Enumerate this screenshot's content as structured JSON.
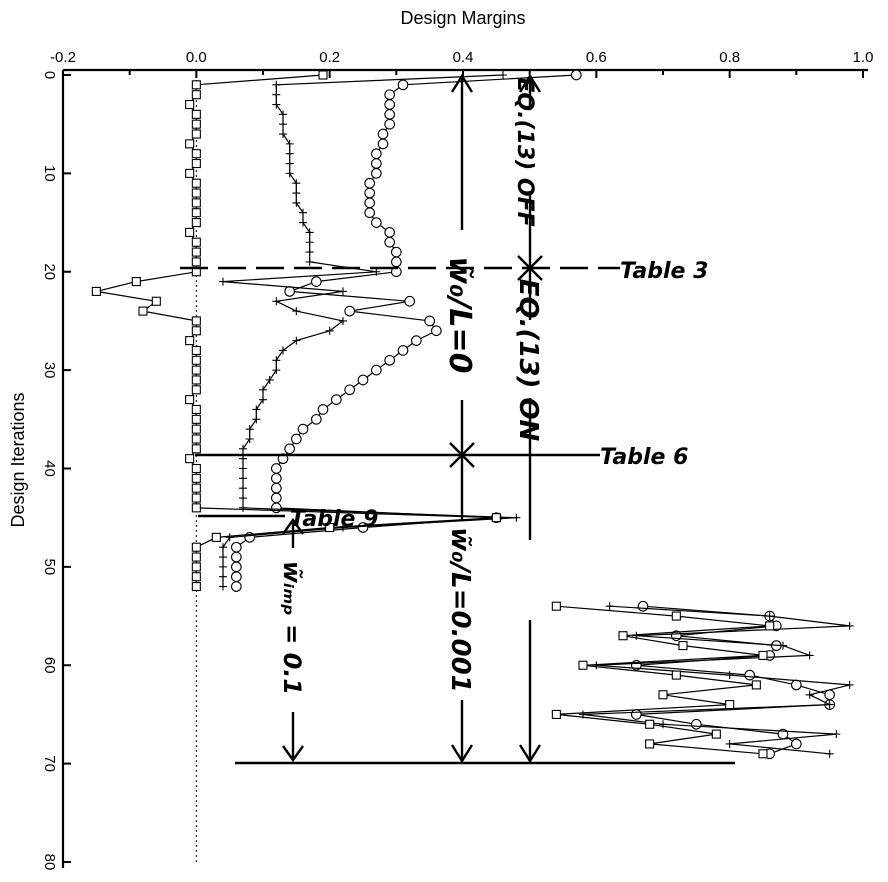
{
  "chart_data": {
    "type": "line",
    "title": "",
    "xlabel": "Design Margins",
    "ylabel": "Design Iterations",
    "xlim": [
      -0.2,
      1.0
    ],
    "ylim": [
      0,
      80
    ],
    "y_inverted": true,
    "x_axis_position": "top",
    "x_ticks": [
      "-0.2",
      "0.0",
      "0.2",
      "0.4",
      "0.6",
      "0.8",
      "1.0"
    ],
    "y_ticks": [
      "0",
      "10",
      "20",
      "30",
      "40",
      "50",
      "60",
      "70",
      "80"
    ],
    "reference_line": {
      "x": 0.0,
      "style": "dotted"
    },
    "series": [
      {
        "marker": "circle",
        "points": [
          [
            0.57,
            0
          ],
          [
            0.31,
            1
          ],
          [
            0.29,
            2
          ],
          [
            0.29,
            3
          ],
          [
            0.29,
            4
          ],
          [
            0.29,
            5
          ],
          [
            0.28,
            6
          ],
          [
            0.28,
            7
          ],
          [
            0.27,
            8
          ],
          [
            0.27,
            9
          ],
          [
            0.27,
            10
          ],
          [
            0.26,
            11
          ],
          [
            0.26,
            12
          ],
          [
            0.26,
            13
          ],
          [
            0.26,
            14
          ],
          [
            0.27,
            15
          ],
          [
            0.29,
            16
          ],
          [
            0.29,
            17
          ],
          [
            0.3,
            18
          ],
          [
            0.3,
            19
          ],
          [
            0.3,
            20
          ],
          [
            0.18,
            21
          ],
          [
            0.14,
            22
          ],
          [
            0.32,
            23
          ],
          [
            0.23,
            24
          ],
          [
            0.35,
            25
          ],
          [
            0.36,
            26
          ],
          [
            0.33,
            27
          ],
          [
            0.31,
            28
          ],
          [
            0.29,
            29
          ],
          [
            0.27,
            30
          ],
          [
            0.25,
            31
          ],
          [
            0.23,
            32
          ],
          [
            0.21,
            33
          ],
          [
            0.19,
            34
          ],
          [
            0.18,
            35
          ],
          [
            0.16,
            36
          ],
          [
            0.15,
            37
          ],
          [
            0.14,
            38
          ],
          [
            0.13,
            39
          ],
          [
            0.12,
            40
          ],
          [
            0.12,
            41
          ],
          [
            0.12,
            42
          ],
          [
            0.12,
            43
          ],
          [
            0.12,
            44
          ],
          [
            0.45,
            45
          ],
          [
            0.25,
            46
          ],
          [
            0.08,
            47
          ],
          [
            0.06,
            48
          ],
          [
            0.06,
            49
          ],
          [
            0.06,
            50
          ],
          [
            0.06,
            51
          ],
          [
            0.06,
            52
          ],
          [
            0.67,
            54
          ],
          [
            0.86,
            55
          ],
          [
            0.87,
            56
          ],
          [
            0.72,
            57
          ],
          [
            0.87,
            58
          ],
          [
            0.86,
            59
          ],
          [
            0.66,
            60
          ],
          [
            0.83,
            61
          ],
          [
            0.9,
            62
          ],
          [
            0.95,
            63
          ],
          [
            0.95,
            64
          ],
          [
            0.66,
            65
          ],
          [
            0.75,
            66
          ],
          [
            0.88,
            67
          ],
          [
            0.9,
            68
          ],
          [
            0.86,
            69
          ]
        ]
      },
      {
        "marker": "plus",
        "points": [
          [
            0.46,
            0
          ],
          [
            0.12,
            1
          ],
          [
            0.12,
            2
          ],
          [
            0.12,
            3
          ],
          [
            0.13,
            4
          ],
          [
            0.13,
            5
          ],
          [
            0.13,
            6
          ],
          [
            0.14,
            7
          ],
          [
            0.14,
            8
          ],
          [
            0.14,
            9
          ],
          [
            0.14,
            10
          ],
          [
            0.15,
            11
          ],
          [
            0.15,
            12
          ],
          [
            0.15,
            13
          ],
          [
            0.16,
            14
          ],
          [
            0.16,
            15
          ],
          [
            0.17,
            16
          ],
          [
            0.17,
            17
          ],
          [
            0.17,
            18
          ],
          [
            0.17,
            19
          ],
          [
            0.27,
            20
          ],
          [
            0.04,
            21
          ],
          [
            0.22,
            22
          ],
          [
            0.12,
            23
          ],
          [
            0.15,
            24
          ],
          [
            0.22,
            25
          ],
          [
            0.2,
            26
          ],
          [
            0.15,
            27
          ],
          [
            0.13,
            28
          ],
          [
            0.12,
            29
          ],
          [
            0.12,
            30
          ],
          [
            0.11,
            31
          ],
          [
            0.1,
            32
          ],
          [
            0.1,
            33
          ],
          [
            0.09,
            34
          ],
          [
            0.09,
            35
          ],
          [
            0.08,
            36
          ],
          [
            0.08,
            37
          ],
          [
            0.07,
            38
          ],
          [
            0.07,
            39
          ],
          [
            0.07,
            40
          ],
          [
            0.07,
            41
          ],
          [
            0.07,
            42
          ],
          [
            0.07,
            43
          ],
          [
            0.07,
            44
          ],
          [
            0.48,
            45
          ],
          [
            0.22,
            46
          ],
          [
            0.05,
            47
          ],
          [
            0.04,
            48
          ],
          [
            0.04,
            49
          ],
          [
            0.04,
            50
          ],
          [
            0.04,
            51
          ],
          [
            0.04,
            52
          ],
          [
            0.62,
            54
          ],
          [
            0.86,
            55
          ],
          [
            0.98,
            56
          ],
          [
            0.66,
            57
          ],
          [
            0.88,
            58
          ],
          [
            0.92,
            59
          ],
          [
            0.6,
            60
          ],
          [
            0.8,
            61
          ],
          [
            0.98,
            62
          ],
          [
            0.92,
            63
          ],
          [
            0.95,
            64
          ],
          [
            0.58,
            65
          ],
          [
            0.7,
            66
          ],
          [
            0.96,
            67
          ],
          [
            0.8,
            68
          ],
          [
            0.95,
            69
          ]
        ]
      },
      {
        "marker": "square",
        "points": [
          [
            0.19,
            0
          ],
          [
            0.0,
            1
          ],
          [
            0.0,
            2
          ],
          [
            -0.01,
            3
          ],
          [
            0.0,
            4
          ],
          [
            0.0,
            5
          ],
          [
            0.0,
            6
          ],
          [
            -0.01,
            7
          ],
          [
            0.0,
            8
          ],
          [
            0.0,
            9
          ],
          [
            -0.01,
            10
          ],
          [
            0.0,
            11
          ],
          [
            0.0,
            12
          ],
          [
            0.0,
            13
          ],
          [
            0.0,
            14
          ],
          [
            0.0,
            15
          ],
          [
            -0.01,
            16
          ],
          [
            0.0,
            17
          ],
          [
            0.0,
            18
          ],
          [
            0.0,
            19
          ],
          [
            0.0,
            20
          ],
          [
            -0.09,
            21
          ],
          [
            -0.15,
            22
          ],
          [
            -0.06,
            23
          ],
          [
            -0.08,
            24
          ],
          [
            0.0,
            25
          ],
          [
            0.0,
            26
          ],
          [
            -0.01,
            27
          ],
          [
            0.0,
            28
          ],
          [
            0.0,
            29
          ],
          [
            0.0,
            30
          ],
          [
            0.0,
            31
          ],
          [
            0.0,
            32
          ],
          [
            -0.01,
            33
          ],
          [
            0.0,
            34
          ],
          [
            0.0,
            35
          ],
          [
            0.0,
            36
          ],
          [
            0.0,
            37
          ],
          [
            0.0,
            38
          ],
          [
            -0.01,
            39
          ],
          [
            0.0,
            40
          ],
          [
            0.0,
            41
          ],
          [
            0.0,
            42
          ],
          [
            0.0,
            43
          ],
          [
            0.0,
            44
          ],
          [
            0.45,
            45
          ],
          [
            0.2,
            46
          ],
          [
            0.03,
            47
          ],
          [
            0.0,
            48
          ],
          [
            0.0,
            49
          ],
          [
            0.0,
            50
          ],
          [
            0.0,
            51
          ],
          [
            0.0,
            52
          ],
          [
            0.54,
            54
          ],
          [
            0.72,
            55
          ],
          [
            0.86,
            56
          ],
          [
            0.64,
            57
          ],
          [
            0.73,
            58
          ],
          [
            0.85,
            59
          ],
          [
            0.58,
            60
          ],
          [
            0.72,
            61
          ],
          [
            0.84,
            62
          ],
          [
            0.7,
            63
          ],
          [
            0.8,
            64
          ],
          [
            0.54,
            65
          ],
          [
            0.68,
            66
          ],
          [
            0.78,
            67
          ],
          [
            0.68,
            68
          ],
          [
            0.85,
            69
          ]
        ]
      }
    ],
    "annotations": {
      "table3": "Table 3",
      "table6": "Table 6",
      "table9": "Table 9",
      "eq_off": "EQ.(13) OFF",
      "eq_on": "EQ.(13) ON",
      "wl_zero": "w̃₀/L=0",
      "wl_small": "w̃₀/L=0.001",
      "wimp": "w̃ᵢₘₚ = 0.1"
    }
  }
}
